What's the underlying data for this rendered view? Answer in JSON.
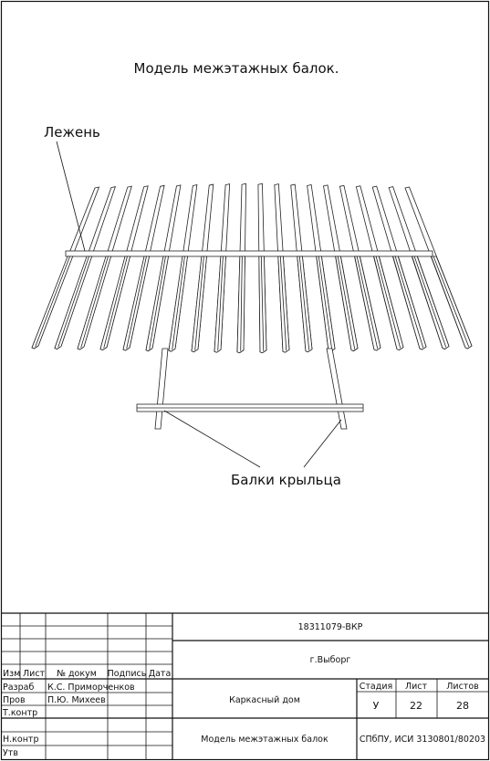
{
  "drawing": {
    "title": "Модель межэтажных балок.",
    "callouts": {
      "lezhen": "Лежень",
      "porch_beams": "Балки крыльца"
    }
  },
  "title_block": {
    "doc_code": "18311079-ВКР",
    "city": "г.Выборг",
    "object_name": "Каркасный дом",
    "sheet_name": "Модель межэтажных балок",
    "organization": "СПбПУ, ИСИ 3130801/80203",
    "headers": {
      "izm": "Изм",
      "list": "Лист",
      "doc_no": "№ докум",
      "sign": "Подпись",
      "date": "Дата",
      "stage": "Стадия",
      "sheet": "Лист",
      "sheets": "Листов"
    },
    "roles": {
      "developer": "Разраб",
      "checker": "Пров",
      "t_control": "Т.контр",
      "n_control": "Н.контр",
      "approved": "Утв"
    },
    "names": {
      "developer": "К.С. Приморченков",
      "checker": "П.Ю. Михеев"
    },
    "stage_value": "У",
    "sheet_value": "22",
    "sheets_value": "28"
  }
}
